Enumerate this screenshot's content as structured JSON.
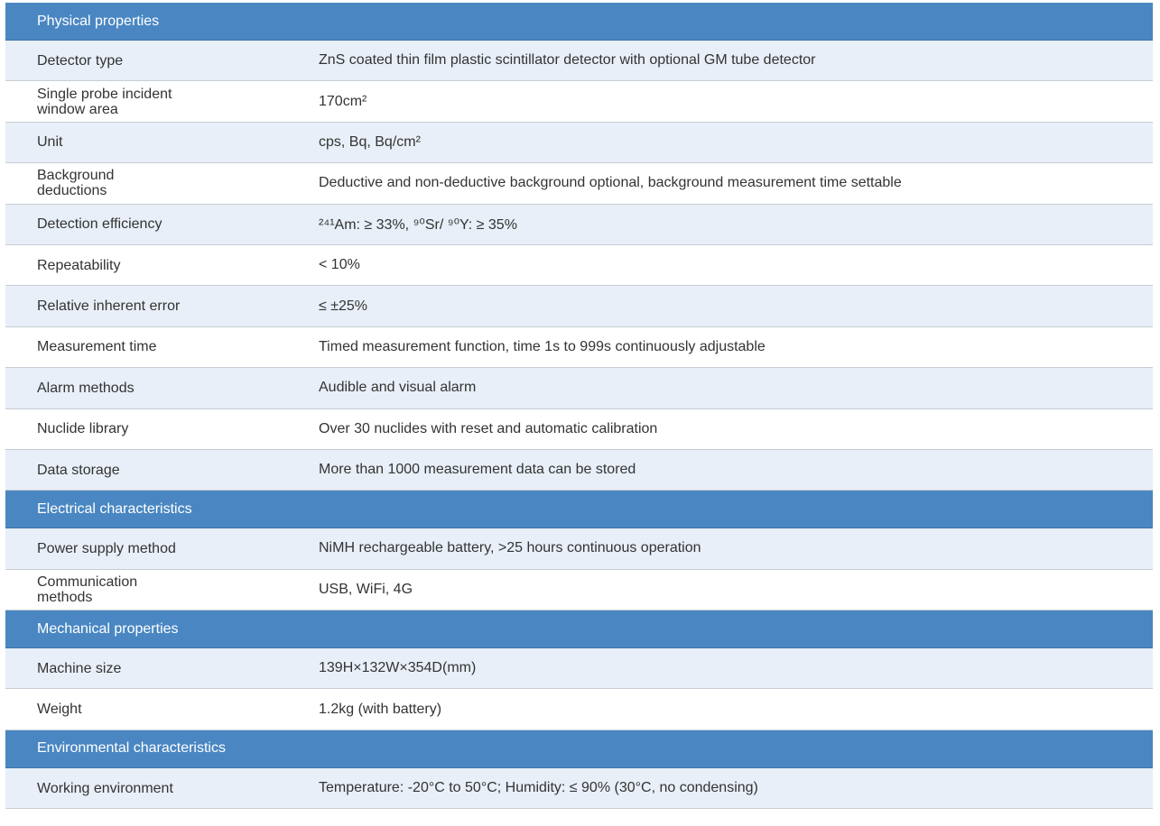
{
  "sections": [
    {
      "title": "Physical properties",
      "rows": [
        [
          "Detector type",
          "ZnS coated thin film plastic scintillator detector with optional GM tube detector"
        ],
        [
          "Single probe incident window area",
          "170cm²"
        ],
        [
          "Unit",
          "cps, Bq, Bq/cm²"
        ],
        [
          "Background deductions",
          "Deductive and non-deductive background optional, background measurement time settable"
        ],
        [
          "Detection efficiency",
          "²⁴¹Am: ≥ 33%, ⁹⁰Sr/ ⁹⁰Y: ≥ 35%"
        ],
        [
          "Repeatability",
          "< 10%"
        ],
        [
          "Relative inherent error",
          "≤ ±25%"
        ],
        [
          "Measurement time",
          "Timed measurement function, time 1s to 999s continuously adjustable"
        ],
        [
          "Alarm methods",
          "Audible and visual alarm"
        ],
        [
          "Nuclide library",
          "Over 30 nuclides with reset and automatic calibration"
        ],
        [
          "Data storage",
          "More than 1000 measurement data can be stored"
        ]
      ]
    },
    {
      "title": "Electrical characteristics",
      "rows": [
        [
          "Power supply method",
          "NiMH rechargeable battery, >25 hours continuous operation"
        ],
        [
          "Communication methods",
          "USB, WiFi, 4G"
        ]
      ]
    },
    {
      "title": "Mechanical properties",
      "rows": [
        [
          "Machine size",
          "139H×132W×354D(mm)"
        ],
        [
          "Weight",
          "1.2kg (with battery)"
        ]
      ]
    },
    {
      "title": "Environmental characteristics",
      "rows": [
        [
          "Working environment",
          "Temperature: -20°C to 50°C; Humidity: ≤ 90% (30°C, no condensing)"
        ]
      ]
    }
  ]
}
